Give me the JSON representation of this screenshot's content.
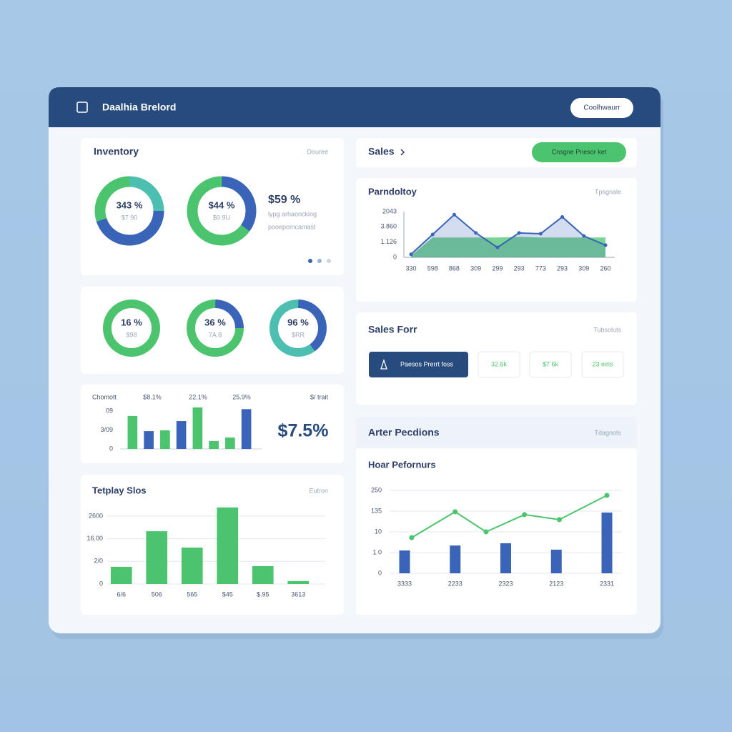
{
  "header": {
    "title": "Daalhia Brelord",
    "button": "Coolhwaurr"
  },
  "inventory": {
    "title": "Inventory",
    "link": "Douree",
    "stat": "$59 %",
    "lines": [
      "lypg arhaoncking",
      "pooepomcamast"
    ]
  },
  "sales": {
    "title": "Sales",
    "button": "Cnsgne Pnesor ket"
  },
  "sales_form": {
    "title": "Sales Forr",
    "link": "Tubsoluts",
    "button": "Paesos Prerrt foss",
    "boxes": [
      "32.6k",
      "$7 6k",
      "23 eiris"
    ]
  },
  "after": {
    "title": "Arter Pecdions",
    "link": "Tdagnots"
  },
  "chart_data": [
    {
      "type": "donut",
      "values": [
        25,
        45,
        30
      ],
      "colors": [
        "#4dbfb0",
        "#3a64b8",
        "#4cc46e"
      ],
      "center_label": "343 %",
      "center_sublabel": "$7 90"
    },
    {
      "type": "donut",
      "values": [
        35,
        65
      ],
      "colors": [
        "#3a64b8",
        "#4cc46e"
      ],
      "center_label": "$44 %",
      "center_sublabel": "$0 9U"
    },
    {
      "type": "donut",
      "values": [
        100
      ],
      "colors": [
        "#4cc46e"
      ],
      "center_label": "16 %",
      "center_sublabel": "$98"
    },
    {
      "type": "donut",
      "values": [
        25,
        75
      ],
      "colors": [
        "#3a64b8",
        "#4cc46e"
      ],
      "center_label": "36 %",
      "center_sublabel": "7A.8"
    },
    {
      "type": "donut",
      "values": [
        40,
        60
      ],
      "colors": [
        "#3a64b8",
        "#4dbfb0"
      ],
      "center_label": "96 %",
      "center_sublabel": "$RR"
    },
    {
      "type": "bar",
      "title": "Chomott",
      "column_labels": [
        "$8.1%",
        "22.1%",
        "25.9%"
      ],
      "side_label": "$/ trait",
      "annotation": "$7.5%",
      "values": [
        1.74,
        0.94,
        0.98,
        1.47,
        2.19,
        0.42,
        0.6,
        2.1
      ],
      "colors": [
        "#4cc46e",
        "#3a64b8",
        "#4cc46e",
        "#3a64b8",
        "#4cc46e",
        "#4cc46e",
        "#4cc46e",
        "#3a64b8"
      ],
      "ylim": [
        0,
        2.2
      ],
      "yticks": [
        0,
        {
          "value": 1,
          "label": "3/09"
        },
        {
          "value": 2,
          "label": "09"
        }
      ],
      "grid": false
    },
    {
      "type": "bar",
      "title": "Tetplay Slos",
      "link": "Eutron",
      "categories": [
        "6/6",
        "506",
        "565",
        "$45",
        "$.95",
        "3613"
      ],
      "values": [
        0.76,
        2.33,
        1.61,
        3.38,
        0.79,
        0.13
      ],
      "color": "#4cc46e",
      "ylim": [
        0,
        3.5
      ],
      "yticks": [
        0,
        {
          "value": 1,
          "label": "2/0"
        },
        {
          "value": 2,
          "label": "16.00"
        },
        {
          "value": 3,
          "label": "2600"
        }
      ],
      "grid": true
    },
    {
      "type": "area",
      "title": "Parndoltoy",
      "link": "Tpsgnale",
      "categories": [
        "330",
        "598",
        "868",
        "309",
        "299",
        "293",
        "773",
        "293",
        "309",
        "260"
      ],
      "series": [
        {
          "color": "#4cc46e",
          "values": [
            0.1,
            1.3,
            1.3,
            1.3,
            1.3,
            1.35,
            1.3,
            1.3,
            1.3,
            1.3
          ]
        },
        {
          "color": "#3a64b8",
          "values": [
            0.2,
            1.5,
            2.8,
            1.6,
            0.65,
            1.6,
            1.55,
            2.65,
            1.4,
            0.8
          ]
        }
      ],
      "ylim": [
        0,
        3
      ],
      "yticks": [
        0,
        {
          "value": 1,
          "label": "1.126"
        },
        {
          "value": 2,
          "label": "3.860"
        },
        {
          "value": 3,
          "label": "2043"
        }
      ],
      "grid": false
    },
    {
      "type": "combo",
      "title": "Hoar Pefornurs",
      "xlim": [
        -0.4,
        4.4
      ],
      "xticks": [
        {
          "value": 0,
          "label": "3333"
        },
        {
          "value": 1,
          "label": "2233"
        },
        {
          "value": 2,
          "label": "2323"
        },
        {
          "value": 3,
          "label": "2123"
        },
        {
          "value": 4,
          "label": "2331"
        }
      ],
      "series": [
        {
          "type": "bar",
          "color": "#3a64b8",
          "x": [
            0,
            1,
            2,
            3,
            4
          ],
          "values": [
            1.1,
            1.34,
            1.45,
            1.14,
            2.93
          ]
        },
        {
          "type": "line",
          "color": "#4cc46e",
          "x": [
            0.14,
            1,
            1.61,
            2.37,
            3.06,
            4
          ],
          "values": [
            1.72,
            2.97,
            2.0,
            2.83,
            2.59,
            3.76
          ]
        }
      ],
      "ylim": [
        0,
        4
      ],
      "yticks": [
        0,
        {
          "value": 1,
          "label": "1.0"
        },
        {
          "value": 2,
          "label": "10"
        },
        {
          "value": 3,
          "label": "135"
        },
        {
          "value": 4,
          "label": "250"
        }
      ],
      "grid": true
    }
  ]
}
